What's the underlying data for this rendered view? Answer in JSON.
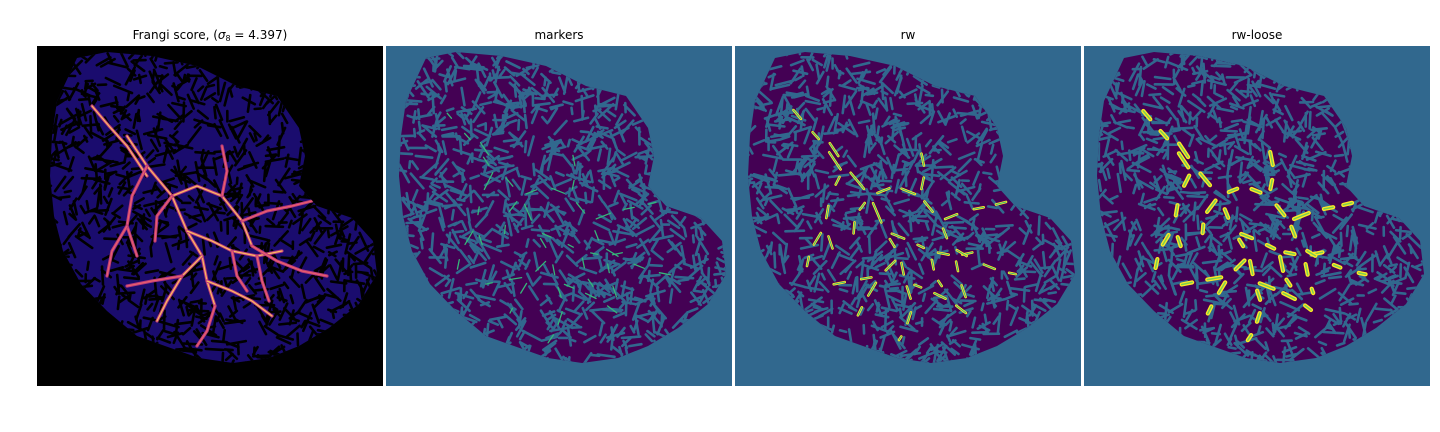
{
  "figure": {
    "panels": [
      {
        "id": "frangi",
        "title_prefix": "Frangi score, (",
        "title_symbol": "σ",
        "title_subscript": "8",
        "title_suffix": " = 4.397)",
        "background": "#000000",
        "tissue_color": "#1a0c6e",
        "pore_color": "#000000",
        "vessel_colors": [
          "#b7377a",
          "#e8606c",
          "#fbb861"
        ]
      },
      {
        "id": "markers",
        "title": "markers",
        "background": "#31688e",
        "tissue_color": "#440154",
        "pore_color": "#31688e",
        "vessel_colors": [
          "#35b779",
          "#21918c"
        ]
      },
      {
        "id": "rw",
        "title": "rw",
        "background": "#31688e",
        "tissue_color": "#440154",
        "pore_color": "#31688e",
        "vessel_colors": [
          "#fde725",
          "#35b779"
        ]
      },
      {
        "id": "rw-loose",
        "title": "rw-loose",
        "background": "#31688e",
        "tissue_color": "#440154",
        "pore_color": "#31688e",
        "vessel_colors": [
          "#fde725",
          "#7ad151"
        ]
      }
    ]
  }
}
